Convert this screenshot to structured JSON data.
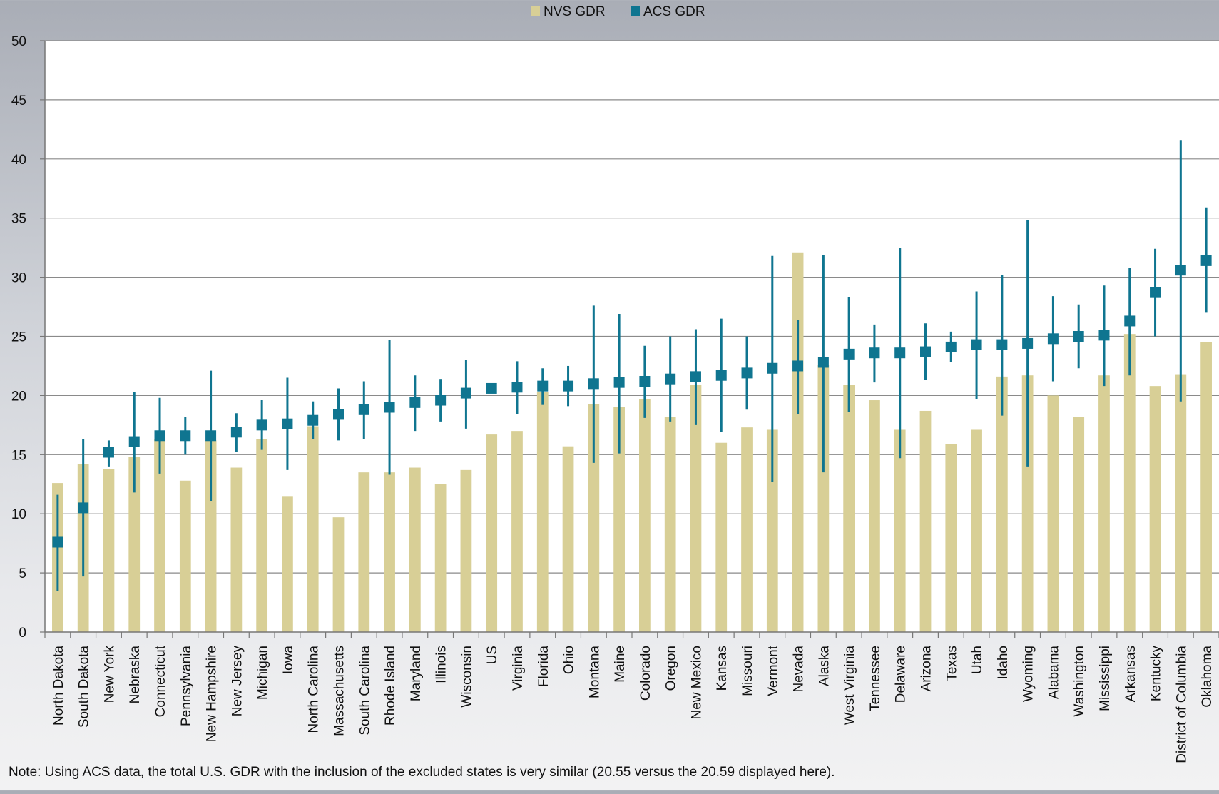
{
  "chart_data": {
    "type": "bar",
    "categories": [
      "North Dakota",
      "South Dakota",
      "New York",
      "Nebraska",
      "Connecticut",
      "Pennsylvania",
      "New Hampshire",
      "New Jersey",
      "Michigan",
      "Iowa",
      "North Carolina",
      "Massachusetts",
      "South Carolina",
      "Rhode Island",
      "Maryland",
      "Illinois",
      "Wisconsin",
      "US",
      "Virginia",
      "Florida",
      "Ohio",
      "Montana",
      "Maine",
      "Colorado",
      "Oregon",
      "New Mexico",
      "Kansas",
      "Missouri",
      "Vermont",
      "Nevada",
      "Alaska",
      "West Virginia",
      "Tennessee",
      "Delaware",
      "Arizona",
      "Texas",
      "Utah",
      "Idaho",
      "Wyoming",
      "Alabama",
      "Washington",
      "Mississippi",
      "Arkansas",
      "Kentucky",
      "District of Columbia",
      "Oklahoma"
    ],
    "series": [
      {
        "name": "NVS GDR",
        "kind": "bar",
        "color": "#d8cf96",
        "values": [
          12.6,
          14.2,
          13.8,
          14.8,
          16.3,
          12.8,
          16.2,
          13.9,
          16.3,
          11.5,
          17.4,
          9.7,
          13.5,
          13.5,
          13.9,
          12.5,
          13.7,
          16.7,
          17.0,
          20.3,
          15.7,
          19.3,
          19.0,
          19.7,
          18.2,
          20.9,
          16.0,
          17.3,
          17.1,
          32.1,
          22.6,
          20.9,
          19.6,
          17.1,
          18.7,
          15.9,
          17.1,
          21.6,
          21.7,
          20.0,
          18.2,
          21.7,
          25.2,
          20.8,
          21.8,
          24.5
        ]
      },
      {
        "name": "ACS GDR",
        "kind": "point_with_error",
        "color": "#0f7590",
        "values": [
          7.6,
          10.5,
          15.2,
          16.1,
          16.6,
          16.6,
          16.6,
          16.9,
          17.5,
          17.6,
          17.9,
          18.4,
          18.8,
          19.0,
          19.4,
          19.6,
          20.2,
          20.6,
          20.7,
          20.8,
          20.8,
          21.0,
          21.1,
          21.2,
          21.4,
          21.6,
          21.7,
          21.9,
          22.3,
          22.5,
          22.8,
          23.5,
          23.6,
          23.6,
          23.7,
          24.1,
          24.3,
          24.3,
          24.4,
          24.8,
          25.0,
          25.1,
          26.3,
          28.7,
          30.6,
          31.4
        ],
        "low": [
          3.5,
          4.7,
          14.0,
          11.8,
          13.4,
          15.0,
          11.1,
          15.2,
          15.4,
          13.7,
          16.3,
          16.2,
          16.3,
          13.3,
          17.0,
          17.8,
          17.2,
          20.6,
          18.4,
          19.2,
          19.1,
          14.3,
          15.1,
          18.1,
          17.8,
          17.5,
          16.9,
          18.8,
          12.7,
          18.4,
          13.5,
          18.6,
          21.1,
          14.7,
          21.3,
          22.8,
          19.7,
          18.3,
          14.0,
          21.2,
          22.3,
          20.8,
          21.7,
          25.0,
          19.5,
          27.0
        ],
        "high": [
          11.6,
          16.3,
          16.2,
          20.3,
          19.8,
          18.2,
          22.1,
          18.5,
          19.6,
          21.5,
          19.5,
          20.6,
          21.2,
          24.7,
          21.7,
          21.4,
          23.0,
          20.6,
          22.9,
          22.3,
          22.5,
          27.6,
          26.9,
          24.2,
          25.0,
          25.6,
          26.5,
          25.0,
          31.8,
          26.4,
          31.9,
          28.3,
          26.0,
          32.5,
          26.1,
          25.4,
          28.8,
          30.2,
          34.8,
          28.4,
          27.7,
          29.3,
          30.8,
          32.4,
          41.6,
          35.9
        ]
      }
    ],
    "ylim": [
      0,
      50
    ],
    "yticks": [
      "0",
      "5",
      "10",
      "15",
      "20",
      "25",
      "30",
      "35",
      "40",
      "45",
      "50"
    ],
    "grid": true,
    "legend_position": "top-center"
  },
  "legend": {
    "nvs": "NVS GDR",
    "acs": "ACS GDR"
  },
  "note": "Note: Using ACS data, the total U.S. GDR with the inclusion of the excluded states is very similar (20.55 versus the 20.59 displayed here)."
}
